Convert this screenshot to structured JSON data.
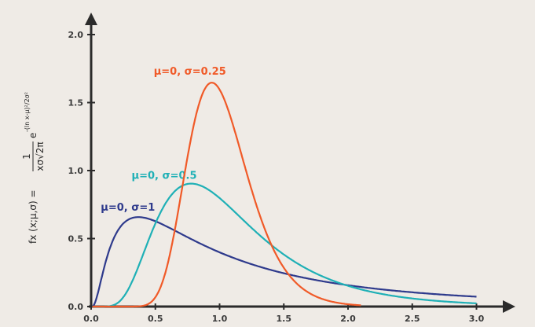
{
  "chart_data": {
    "type": "line",
    "title": "",
    "xlabel": "",
    "ylabel": {
      "lhs": "fx (x;μ,σ) =",
      "frac_num": "1",
      "frac_den": "xσ√2π",
      "base": "e",
      "exponent": "-(ln x-μ)²/2σ²"
    },
    "xlim": [
      0,
      3.2
    ],
    "ylim": [
      0,
      2.1
    ],
    "x_ticks": [
      "0.0",
      "0.5",
      "1.0",
      "1.5",
      "2.0",
      "2.5",
      "3.0"
    ],
    "y_ticks": [
      "0.0",
      "0.5",
      "1.0",
      "1.5",
      "2.0"
    ],
    "grid": false,
    "series": [
      {
        "name": "μ=0, σ=1",
        "mu": 0,
        "sigma": 1,
        "color": "#2e3a8c",
        "x_range": [
          0.01,
          3.0
        ]
      },
      {
        "name": "μ=0, σ=0.5",
        "mu": 0,
        "sigma": 0.5,
        "color": "#1fb0b6",
        "x_range": [
          0.01,
          3.0
        ]
      },
      {
        "name": "μ=0, σ=0.25",
        "mu": 0,
        "sigma": 0.25,
        "color": "#f05a28",
        "x_range": [
          0.01,
          2.1
        ]
      }
    ]
  }
}
